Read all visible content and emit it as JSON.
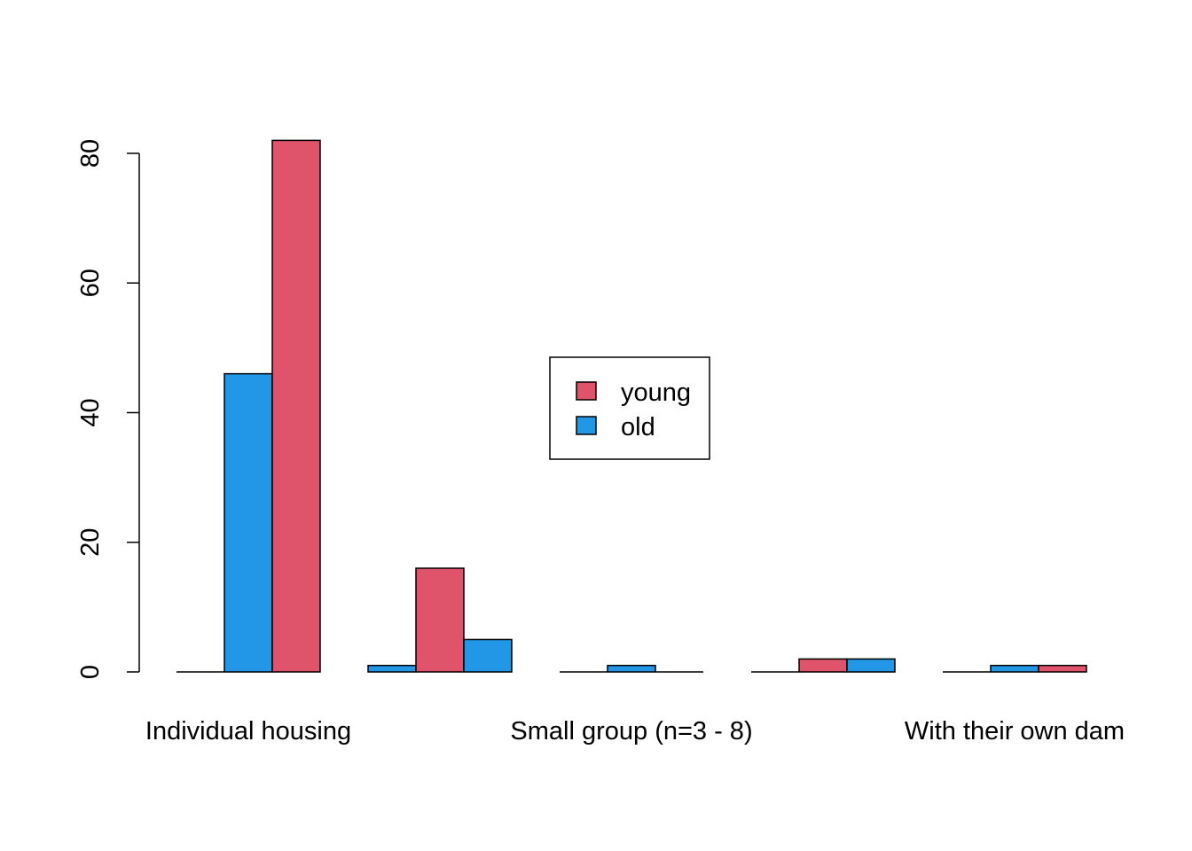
{
  "chart_data": {
    "type": "bar",
    "layout": "grouped",
    "title": "",
    "xlabel": "",
    "ylabel": "",
    "ylim": [
      0,
      82
    ],
    "yticks": [
      0,
      20,
      40,
      60,
      80
    ],
    "groups": [
      {
        "label": "Individual housing",
        "bars": [
          {
            "series": "",
            "value": 0
          },
          {
            "series": "old",
            "value": 46
          },
          {
            "series": "young",
            "value": 82
          }
        ]
      },
      {
        "label": "",
        "bars": [
          {
            "series": "old",
            "value": 1
          },
          {
            "series": "young",
            "value": 16
          },
          {
            "series": "old",
            "value": 5
          }
        ]
      },
      {
        "label": "Small group (n=3 - 8)",
        "bars": [
          {
            "series": "",
            "value": 0
          },
          {
            "series": "old",
            "value": 1
          },
          {
            "series": "",
            "value": 0
          }
        ]
      },
      {
        "label": "",
        "bars": [
          {
            "series": "",
            "value": 0
          },
          {
            "series": "young",
            "value": 2
          },
          {
            "series": "old",
            "value": 2
          }
        ]
      },
      {
        "label": "With their own dam",
        "bars": [
          {
            "series": "",
            "value": 0
          },
          {
            "series": "old",
            "value": 1
          },
          {
            "series": "young",
            "value": 1
          }
        ]
      }
    ],
    "legend": {
      "position": "center",
      "entries": [
        {
          "name": "young",
          "color": "#DF536B"
        },
        {
          "name": "old",
          "color": "#2297E6"
        }
      ]
    },
    "colors": {
      "young": "#DF536B",
      "old": "#2297E6"
    }
  }
}
